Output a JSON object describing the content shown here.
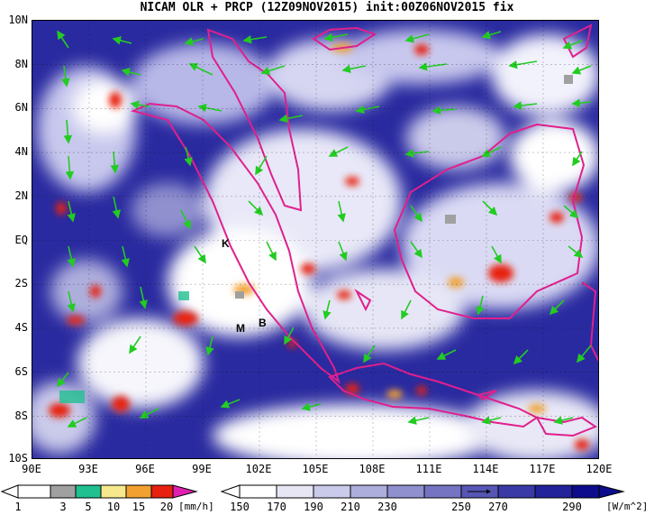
{
  "title": "NICAM OLR + PRCP (12Z09NOV2015) init:00Z06NOV2015 fix",
  "lat_labels": [
    "10N",
    "8N",
    "6N",
    "4N",
    "2N",
    "EQ",
    "2S",
    "4S",
    "6S",
    "8S",
    "10S"
  ],
  "lon_labels": [
    "90E",
    "93E",
    "96E",
    "99E",
    "102E",
    "105E",
    "108E",
    "111E",
    "114E",
    "117E",
    "120E"
  ],
  "island_labels": {
    "k": "K",
    "m": "M",
    "b": "B"
  },
  "precip_colorbar": {
    "labels": [
      "1",
      "3",
      "5",
      "10",
      "15",
      "20"
    ],
    "unit": "[mm/h]",
    "colors": [
      "#a0a0a0",
      "#20c090",
      "#f6e88c",
      "#f2a030",
      "#e82010",
      "#e020b0"
    ]
  },
  "olr_colorbar": {
    "labels": [
      "150",
      "170",
      "190",
      "210",
      "230",
      "250",
      "270",
      "290"
    ],
    "unit": "[W/m^2]",
    "colors": [
      "#ffffff",
      "#e6e6f4",
      "#cacaea",
      "#aeaedd",
      "#9090cf",
      "#7474c2",
      "#5656b4",
      "#3a3aa6",
      "#22229a",
      "#0c0c8c"
    ]
  },
  "colors": {
    "coastline": "#e0208c",
    "wind": "#22cc22",
    "ocean_deep": "#1a1a96"
  }
}
